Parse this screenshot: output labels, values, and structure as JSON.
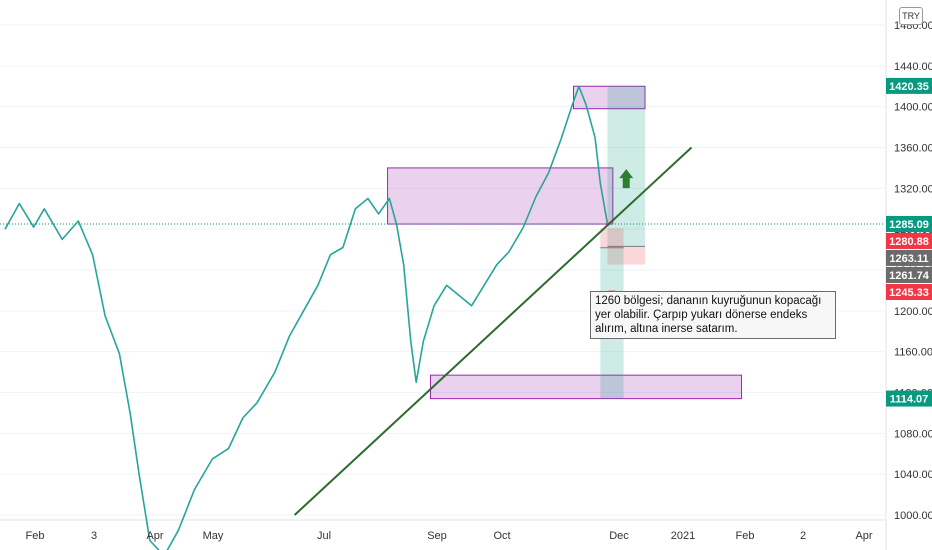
{
  "chart_data": {
    "type": "candlestick",
    "currency": "TRY",
    "ylim": [
      1000,
      1480
    ],
    "y_ticks": [
      "1000.00",
      "1040.00",
      "1080.00",
      "1120.00",
      "1160.00",
      "1200.00",
      "1240.00",
      "1280.00",
      "1320.00",
      "1360.00",
      "1400.00",
      "1440.00",
      "1480.00"
    ],
    "x_ticks": [
      "Feb",
      "3",
      "Apr",
      "May",
      "Jul",
      "Sep",
      "Oct",
      "Dec",
      "2021",
      "Feb",
      "2",
      "Apr"
    ],
    "price_labels": [
      {
        "value": "1420.35",
        "color": "#089981"
      },
      {
        "value": "1285.09",
        "color": "#089981"
      },
      {
        "value": "1280.88",
        "color": "#f23645"
      },
      {
        "value": "1263.11",
        "color": "#6b6b6b"
      },
      {
        "value": "1261.74",
        "color": "#6b6b6b"
      },
      {
        "value": "1245.33",
        "color": "#f23645"
      },
      {
        "value": "1114.07",
        "color": "#089981"
      }
    ],
    "current_price": 1285.09,
    "price_path": [
      {
        "date": "2020-01-02",
        "price": 1280
      },
      {
        "date": "2020-01-10",
        "price": 1305
      },
      {
        "date": "2020-01-18",
        "price": 1282
      },
      {
        "date": "2020-01-24",
        "price": 1300
      },
      {
        "date": "2020-02-03",
        "price": 1270
      },
      {
        "date": "2020-02-12",
        "price": 1288
      },
      {
        "date": "2020-02-20",
        "price": 1255
      },
      {
        "date": "2020-02-27",
        "price": 1195
      },
      {
        "date": "2020-03-06",
        "price": 1158
      },
      {
        "date": "2020-03-12",
        "price": 1100
      },
      {
        "date": "2020-03-17",
        "price": 1040
      },
      {
        "date": "2020-03-23",
        "price": 975
      },
      {
        "date": "2020-03-31",
        "price": 960
      },
      {
        "date": "2020-04-08",
        "price": 985
      },
      {
        "date": "2020-04-17",
        "price": 1025
      },
      {
        "date": "2020-04-27",
        "price": 1055
      },
      {
        "date": "2020-05-06",
        "price": 1065
      },
      {
        "date": "2020-05-14",
        "price": 1095
      },
      {
        "date": "2020-05-22",
        "price": 1110
      },
      {
        "date": "2020-06-01",
        "price": 1140
      },
      {
        "date": "2020-06-09",
        "price": 1175
      },
      {
        "date": "2020-06-17",
        "price": 1200
      },
      {
        "date": "2020-06-25",
        "price": 1225
      },
      {
        "date": "2020-07-02",
        "price": 1255
      },
      {
        "date": "2020-07-09",
        "price": 1262
      },
      {
        "date": "2020-07-16",
        "price": 1300
      },
      {
        "date": "2020-07-23",
        "price": 1310
      },
      {
        "date": "2020-07-29",
        "price": 1295
      },
      {
        "date": "2020-08-04",
        "price": 1310
      },
      {
        "date": "2020-08-08",
        "price": 1285
      },
      {
        "date": "2020-08-12",
        "price": 1245
      },
      {
        "date": "2020-08-16",
        "price": 1170
      },
      {
        "date": "2020-08-19",
        "price": 1130
      },
      {
        "date": "2020-08-23",
        "price": 1170
      },
      {
        "date": "2020-08-29",
        "price": 1205
      },
      {
        "date": "2020-09-05",
        "price": 1225
      },
      {
        "date": "2020-09-12",
        "price": 1215
      },
      {
        "date": "2020-09-19",
        "price": 1205
      },
      {
        "date": "2020-09-26",
        "price": 1225
      },
      {
        "date": "2020-10-03",
        "price": 1245
      },
      {
        "date": "2020-10-10",
        "price": 1258
      },
      {
        "date": "2020-10-18",
        "price": 1282
      },
      {
        "date": "2020-10-25",
        "price": 1312
      },
      {
        "date": "2020-11-01",
        "price": 1335
      },
      {
        "date": "2020-11-08",
        "price": 1368
      },
      {
        "date": "2020-11-14",
        "price": 1400
      },
      {
        "date": "2020-11-18",
        "price": 1420
      },
      {
        "date": "2020-11-22",
        "price": 1402
      },
      {
        "date": "2020-11-27",
        "price": 1370
      },
      {
        "date": "2020-11-30",
        "price": 1325
      },
      {
        "date": "2020-12-04",
        "price": 1285
      }
    ],
    "trendline": {
      "start": {
        "date": "2020-06-12",
        "price": 1000
      },
      "end": {
        "date": "2021-01-20",
        "price": 1360
      }
    },
    "zones": [
      {
        "name": "zone-top",
        "start": "2020-11-15",
        "end": "2020-12-25",
        "low": 1398,
        "high": 1420
      },
      {
        "name": "zone-middle",
        "start": "2020-08-03",
        "end": "2020-12-07",
        "low": 1285,
        "high": 1340
      },
      {
        "name": "zone-bottom",
        "start": "2020-08-27",
        "end": "2021-02-17",
        "low": 1114,
        "high": 1137
      }
    ],
    "positions": [
      {
        "name": "long-position",
        "start": "2020-12-04",
        "end": "2020-12-25",
        "entry": 1263.11,
        "target": 1420.35,
        "stop": 1245.33
      },
      {
        "name": "short-position",
        "start": "2020-11-30",
        "end": "2020-12-13",
        "entry": 1261.74,
        "target": 1114.07,
        "stop": 1280.88
      }
    ]
  },
  "note": {
    "text": "1260 bölgesi; dananın kuyruğunun kopacağı yer olabilir. Çarpıp yukarı dönerse endeks alırım, altına inerse satarım."
  }
}
